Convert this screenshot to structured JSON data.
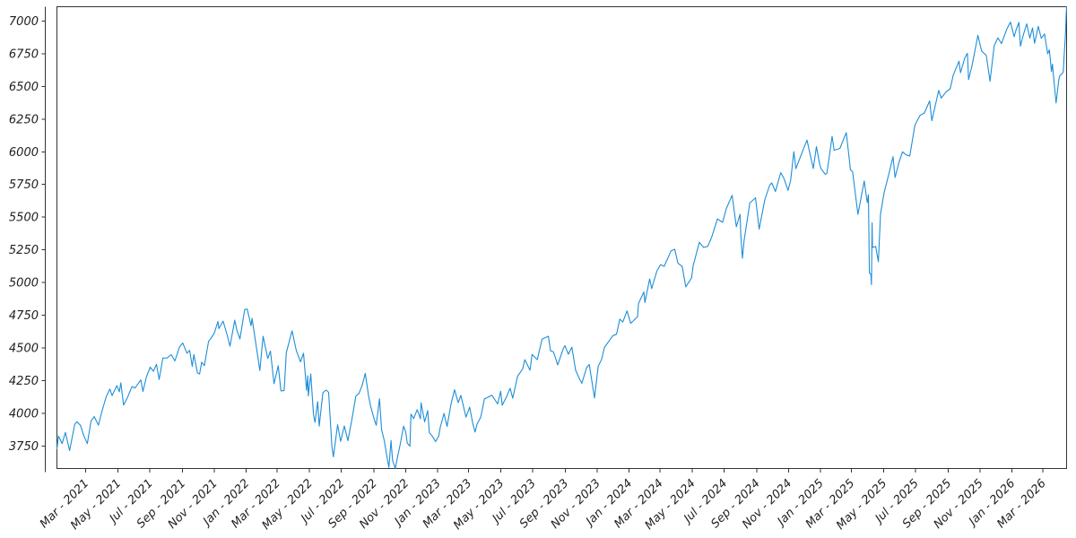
{
  "chart_data": {
    "type": "line",
    "title": "",
    "xlabel": "",
    "ylabel": "",
    "legend": null,
    "grid": false,
    "line_color": "#1e8ed8",
    "axis_color": "#333333",
    "tick_label_color": "#1f1f1f",
    "xlim": [
      2021.011,
      2026.285
    ],
    "ylim": [
      3577,
      7110
    ],
    "y_ticks": [
      3750,
      4000,
      4250,
      4500,
      4750,
      5000,
      5250,
      5500,
      5750,
      6000,
      6250,
      6500,
      6750,
      7000
    ],
    "x_ticks": [
      {
        "t": 2021.162,
        "label": "Mar - 2021"
      },
      {
        "t": 2021.329,
        "label": "May - 2021"
      },
      {
        "t": 2021.496,
        "label": "Jul - 2021"
      },
      {
        "t": 2021.666,
        "label": "Sep - 2021"
      },
      {
        "t": 2021.833,
        "label": "Nov - 2021"
      },
      {
        "t": 2022.0,
        "label": "Jan - 2022"
      },
      {
        "t": 2022.162,
        "label": "Mar - 2022"
      },
      {
        "t": 2022.329,
        "label": "May - 2022"
      },
      {
        "t": 2022.496,
        "label": "Jul - 2022"
      },
      {
        "t": 2022.666,
        "label": "Sep - 2022"
      },
      {
        "t": 2022.833,
        "label": "Nov - 2022"
      },
      {
        "t": 2023.0,
        "label": "Jan - 2023"
      },
      {
        "t": 2023.162,
        "label": "Mar - 2023"
      },
      {
        "t": 2023.329,
        "label": "May - 2023"
      },
      {
        "t": 2023.496,
        "label": "Jul - 2023"
      },
      {
        "t": 2023.666,
        "label": "Sep - 2023"
      },
      {
        "t": 2023.833,
        "label": "Nov - 2023"
      },
      {
        "t": 2024.0,
        "label": "Jan - 2024"
      },
      {
        "t": 2024.162,
        "label": "Mar - 2024"
      },
      {
        "t": 2024.329,
        "label": "May - 2024"
      },
      {
        "t": 2024.496,
        "label": "Jul - 2024"
      },
      {
        "t": 2024.666,
        "label": "Sep - 2024"
      },
      {
        "t": 2024.833,
        "label": "Nov - 2024"
      },
      {
        "t": 2025.0,
        "label": "Jan - 2025"
      },
      {
        "t": 2025.162,
        "label": "Mar - 2025"
      },
      {
        "t": 2025.329,
        "label": "May - 2025"
      },
      {
        "t": 2025.496,
        "label": "Jul - 2025"
      },
      {
        "t": 2025.666,
        "label": "Sep - 2025"
      },
      {
        "t": 2025.833,
        "label": "Nov - 2025"
      },
      {
        "t": 2026.0,
        "label": "Jan - 2026"
      },
      {
        "t": 2026.162,
        "label": "Mar - 2026"
      }
    ],
    "points": [
      [
        2021.011,
        3727
      ],
      [
        2021.019,
        3825
      ],
      [
        2021.038,
        3768
      ],
      [
        2021.055,
        3853
      ],
      [
        2021.077,
        3714
      ],
      [
        2021.104,
        3915
      ],
      [
        2021.115,
        3935
      ],
      [
        2021.134,
        3907
      ],
      [
        2021.151,
        3829
      ],
      [
        2021.17,
        3768
      ],
      [
        2021.189,
        3939
      ],
      [
        2021.206,
        3974
      ],
      [
        2021.228,
        3909
      ],
      [
        2021.247,
        4020
      ],
      [
        2021.269,
        4129
      ],
      [
        2021.288,
        4185
      ],
      [
        2021.299,
        4135
      ],
      [
        2021.324,
        4211
      ],
      [
        2021.337,
        4164
      ],
      [
        2021.345,
        4233
      ],
      [
        2021.359,
        4063
      ],
      [
        2021.378,
        4116
      ],
      [
        2021.403,
        4204
      ],
      [
        2021.419,
        4193
      ],
      [
        2021.449,
        4255
      ],
      [
        2021.46,
        4166
      ],
      [
        2021.479,
        4281
      ],
      [
        2021.498,
        4352
      ],
      [
        2021.515,
        4321
      ],
      [
        2021.531,
        4374
      ],
      [
        2021.545,
        4258
      ],
      [
        2021.564,
        4422
      ],
      [
        2021.586,
        4423
      ],
      [
        2021.608,
        4448
      ],
      [
        2021.627,
        4400
      ],
      [
        2021.652,
        4509
      ],
      [
        2021.668,
        4537
      ],
      [
        2021.69,
        4459
      ],
      [
        2021.704,
        4481
      ],
      [
        2021.718,
        4358
      ],
      [
        2021.726,
        4449
      ],
      [
        2021.745,
        4308
      ],
      [
        2021.756,
        4300
      ],
      [
        2021.767,
        4391
      ],
      [
        2021.781,
        4364
      ],
      [
        2021.803,
        4550
      ],
      [
        2021.816,
        4574
      ],
      [
        2021.833,
        4614
      ],
      [
        2021.852,
        4702
      ],
      [
        2021.857,
        4647
      ],
      [
        2021.879,
        4705
      ],
      [
        2021.901,
        4595
      ],
      [
        2021.915,
        4513
      ],
      [
        2021.94,
        4712
      ],
      [
        2021.951,
        4634
      ],
      [
        2021.967,
        4568
      ],
      [
        2021.992,
        4793
      ],
      [
        2022.005,
        4797
      ],
      [
        2022.025,
        4670
      ],
      [
        2022.03,
        4726
      ],
      [
        2022.071,
        4327
      ],
      [
        2022.088,
        4589
      ],
      [
        2022.112,
        4419
      ],
      [
        2022.126,
        4475
      ],
      [
        2022.145,
        4226
      ],
      [
        2022.167,
        4363
      ],
      [
        2022.181,
        4171
      ],
      [
        2022.198,
        4173
      ],
      [
        2022.209,
        4463
      ],
      [
        2022.239,
        4631
      ],
      [
        2022.261,
        4481
      ],
      [
        2022.283,
        4393
      ],
      [
        2022.299,
        4459
      ],
      [
        2022.315,
        4175
      ],
      [
        2022.321,
        4287
      ],
      [
        2022.324,
        4132
      ],
      [
        2022.337,
        4300
      ],
      [
        2022.351,
        3991
      ],
      [
        2022.359,
        3930
      ],
      [
        2022.373,
        4089
      ],
      [
        2022.381,
        3901
      ],
      [
        2022.4,
        4158
      ],
      [
        2022.417,
        4177
      ],
      [
        2022.43,
        4160
      ],
      [
        2022.447,
        3750
      ],
      [
        2022.455,
        3667
      ],
      [
        2022.477,
        3912
      ],
      [
        2022.493,
        3785
      ],
      [
        2022.512,
        3902
      ],
      [
        2022.531,
        3790
      ],
      [
        2022.553,
        3962
      ],
      [
        2022.572,
        4130
      ],
      [
        2022.589,
        4152
      ],
      [
        2022.605,
        4210
      ],
      [
        2022.622,
        4305
      ],
      [
        2022.638,
        4138
      ],
      [
        2022.649,
        4058
      ],
      [
        2022.666,
        3967
      ],
      [
        2022.679,
        3908
      ],
      [
        2022.696,
        4110
      ],
      [
        2022.707,
        3873
      ],
      [
        2022.721,
        3790
      ],
      [
        2022.737,
        3647
      ],
      [
        2022.745,
        3586
      ],
      [
        2022.756,
        3791
      ],
      [
        2022.764,
        3640
      ],
      [
        2022.778,
        3577
      ],
      [
        2022.792,
        3678
      ],
      [
        2022.803,
        3753
      ],
      [
        2022.822,
        3901
      ],
      [
        2022.833,
        3856
      ],
      [
        2022.841,
        3771
      ],
      [
        2022.855,
        3748
      ],
      [
        2022.86,
        3993
      ],
      [
        2022.874,
        3959
      ],
      [
        2022.893,
        4027
      ],
      [
        2022.91,
        3958
      ],
      [
        2022.913,
        4080
      ],
      [
        2022.932,
        3934
      ],
      [
        2022.948,
        4020
      ],
      [
        2022.956,
        3852
      ],
      [
        2022.973,
        3822
      ],
      [
        2022.989,
        3783
      ],
      [
        2023.005,
        3824
      ],
      [
        2023.014,
        3895
      ],
      [
        2023.033,
        3999
      ],
      [
        2023.049,
        3899
      ],
      [
        2023.068,
        4060
      ],
      [
        2023.088,
        4180
      ],
      [
        2023.107,
        4081
      ],
      [
        2023.121,
        4136
      ],
      [
        2023.148,
        3970
      ],
      [
        2023.167,
        4046
      ],
      [
        2023.184,
        3918
      ],
      [
        2023.195,
        3856
      ],
      [
        2023.206,
        3917
      ],
      [
        2023.225,
        3971
      ],
      [
        2023.244,
        4109
      ],
      [
        2023.283,
        4138
      ],
      [
        2023.313,
        4071
      ],
      [
        2023.329,
        4168
      ],
      [
        2023.337,
        4061
      ],
      [
        2023.359,
        4124
      ],
      [
        2023.378,
        4192
      ],
      [
        2023.392,
        4115
      ],
      [
        2023.417,
        4282
      ],
      [
        2023.444,
        4339
      ],
      [
        2023.455,
        4410
      ],
      [
        2023.482,
        4329
      ],
      [
        2023.493,
        4450
      ],
      [
        2023.52,
        4410
      ],
      [
        2023.545,
        4566
      ],
      [
        2023.578,
        4589
      ],
      [
        2023.589,
        4478
      ],
      [
        2023.605,
        4469
      ],
      [
        2023.627,
        4370
      ],
      [
        2023.657,
        4498
      ],
      [
        2023.665,
        4516
      ],
      [
        2023.682,
        4451
      ],
      [
        2023.701,
        4505
      ],
      [
        2023.72,
        4330
      ],
      [
        2023.737,
        4274
      ],
      [
        2023.753,
        4229
      ],
      [
        2023.778,
        4350
      ],
      [
        2023.792,
        4373
      ],
      [
        2023.819,
        4117
      ],
      [
        2023.838,
        4358
      ],
      [
        2023.857,
        4415
      ],
      [
        2023.871,
        4503
      ],
      [
        2023.888,
        4538
      ],
      [
        2023.915,
        4594
      ],
      [
        2023.934,
        4604
      ],
      [
        2023.951,
        4720
      ],
      [
        2023.967,
        4698
      ],
      [
        2023.989,
        4783
      ],
      [
        2024.008,
        4688
      ],
      [
        2024.044,
        4739
      ],
      [
        2024.049,
        4840
      ],
      [
        2024.077,
        4928
      ],
      [
        2024.082,
        4846
      ],
      [
        2024.107,
        5027
      ],
      [
        2024.118,
        4953
      ],
      [
        2024.145,
        5089
      ],
      [
        2024.164,
        5137
      ],
      [
        2024.183,
        5124
      ],
      [
        2024.219,
        5242
      ],
      [
        2024.238,
        5254
      ],
      [
        2024.255,
        5147
      ],
      [
        2024.277,
        5123
      ],
      [
        2024.296,
        4967
      ],
      [
        2024.326,
        5036
      ],
      [
        2024.334,
        5128
      ],
      [
        2024.367,
        5308
      ],
      [
        2024.389,
        5268
      ],
      [
        2024.411,
        5277
      ],
      [
        2024.431,
        5347
      ],
      [
        2024.461,
        5487
      ],
      [
        2024.488,
        5460
      ],
      [
        2024.508,
        5567
      ],
      [
        2024.538,
        5667
      ],
      [
        2024.56,
        5427
      ],
      [
        2024.579,
        5522
      ],
      [
        2024.584,
        5346
      ],
      [
        2024.592,
        5186
      ],
      [
        2024.6,
        5319
      ],
      [
        2024.63,
        5608
      ],
      [
        2024.66,
        5648
      ],
      [
        2024.679,
        5408
      ],
      [
        2024.709,
        5635
      ],
      [
        2024.734,
        5745
      ],
      [
        2024.745,
        5762
      ],
      [
        2024.764,
        5696
      ],
      [
        2024.792,
        5841
      ],
      [
        2024.808,
        5797
      ],
      [
        2024.83,
        5705
      ],
      [
        2024.844,
        5783
      ],
      [
        2024.86,
        6001
      ],
      [
        2024.871,
        5871
      ],
      [
        2024.904,
        5998
      ],
      [
        2024.929,
        6090
      ],
      [
        2024.962,
        5872
      ],
      [
        2024.978,
        6040
      ],
      [
        2024.995,
        5907
      ],
      [
        2025.003,
        5869
      ],
      [
        2025.025,
        5827
      ],
      [
        2025.033,
        5836
      ],
      [
        2025.06,
        6118
      ],
      [
        2025.071,
        6012
      ],
      [
        2025.101,
        6026
      ],
      [
        2025.134,
        6147
      ],
      [
        2025.156,
        5862
      ],
      [
        2025.167,
        5850
      ],
      [
        2025.195,
        5521
      ],
      [
        2025.228,
        5777
      ],
      [
        2025.244,
        5612
      ],
      [
        2025.25,
        5671
      ],
      [
        2025.255,
        5074
      ],
      [
        2025.263,
        5062
      ],
      [
        2025.266,
        4983
      ],
      [
        2025.269,
        5457
      ],
      [
        2025.271,
        5268
      ],
      [
        2025.288,
        5276
      ],
      [
        2025.302,
        5158
      ],
      [
        2025.313,
        5525
      ],
      [
        2025.332,
        5687
      ],
      [
        2025.359,
        5844
      ],
      [
        2025.378,
        5963
      ],
      [
        2025.389,
        5803
      ],
      [
        2025.408,
        5912
      ],
      [
        2025.428,
        6000
      ],
      [
        2025.447,
        5977
      ],
      [
        2025.466,
        5968
      ],
      [
        2025.493,
        6205
      ],
      [
        2025.52,
        6280
      ],
      [
        2025.542,
        6297
      ],
      [
        2025.57,
        6390
      ],
      [
        2025.581,
        6238
      ],
      [
        2025.617,
        6469
      ],
      [
        2025.63,
        6411
      ],
      [
        2025.657,
        6460
      ],
      [
        2025.677,
        6482
      ],
      [
        2025.693,
        6587
      ],
      [
        2025.723,
        6693
      ],
      [
        2025.731,
        6605
      ],
      [
        2025.753,
        6716
      ],
      [
        2025.767,
        6754
      ],
      [
        2025.773,
        6553
      ],
      [
        2025.792,
        6664
      ],
      [
        2025.822,
        6891
      ],
      [
        2025.841,
        6772
      ],
      [
        2025.866,
        6737
      ],
      [
        2025.885,
        6539
      ],
      [
        2025.907,
        6813
      ],
      [
        2025.926,
        6871
      ],
      [
        2025.945,
        6828
      ],
      [
        2025.973,
        6940
      ],
      [
        2025.992,
        6993
      ],
      [
        2026.011,
        6880
      ],
      [
        2026.022,
        6935
      ],
      [
        2026.036,
        6990
      ],
      [
        2026.044,
        6808
      ],
      [
        2026.06,
        6900
      ],
      [
        2026.077,
        6979
      ],
      [
        2026.093,
        6870
      ],
      [
        2026.107,
        6948
      ],
      [
        2026.118,
        6830
      ],
      [
        2026.137,
        6960
      ],
      [
        2026.153,
        6868
      ],
      [
        2026.17,
        6902
      ],
      [
        2026.186,
        6750
      ],
      [
        2026.195,
        6780
      ],
      [
        2026.206,
        6615
      ],
      [
        2026.211,
        6670
      ],
      [
        2026.225,
        6450
      ],
      [
        2026.23,
        6374
      ],
      [
        2026.244,
        6546
      ],
      [
        2026.249,
        6581
      ],
      [
        2026.263,
        6600
      ],
      [
        2026.268,
        6615
      ],
      [
        2026.271,
        6704
      ],
      [
        2026.279,
        6890
      ],
      [
        2026.282,
        7020
      ],
      [
        2026.285,
        7110
      ]
    ]
  }
}
